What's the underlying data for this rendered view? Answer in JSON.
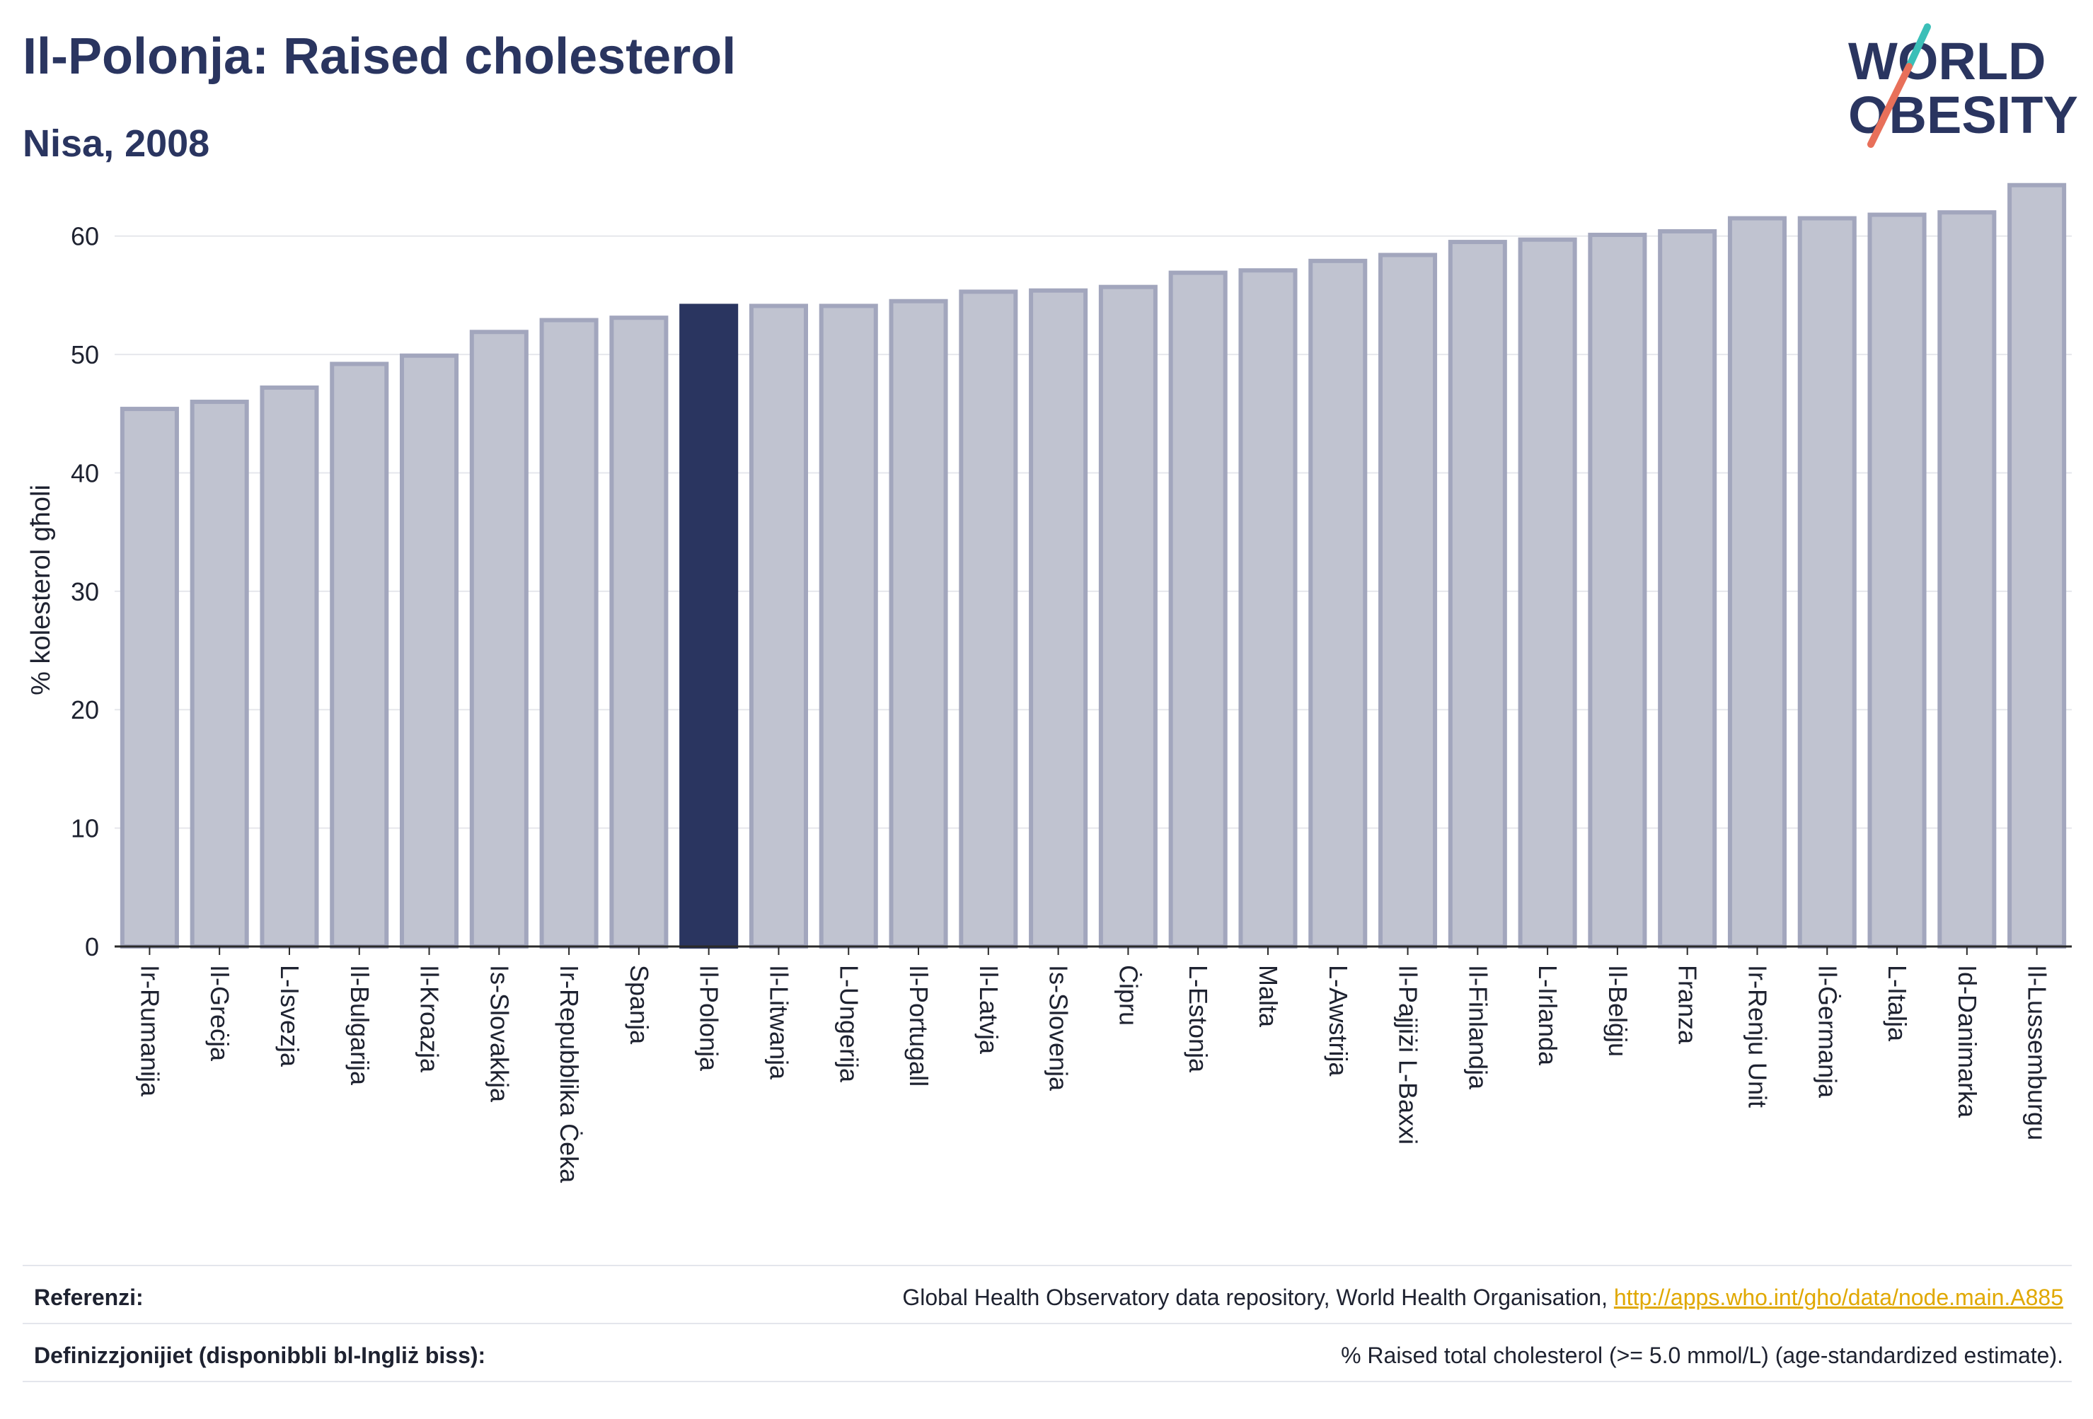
{
  "header": {
    "title": "Il-Polonja: Raised cholesterol",
    "subtitle": "Nisa, 2008"
  },
  "logo": {
    "line1": "WORLD",
    "line2": "OBESITY",
    "colors": {
      "text": "#2a3560",
      "slash_teal": "#3bbfb8",
      "slash_coral": "#e8705a"
    }
  },
  "chart_data": {
    "type": "bar",
    "title": "Il-Polonja: Raised cholesterol",
    "subtitle": "Nisa, 2008",
    "xlabel": "",
    "ylabel": "% kolesterol għoli",
    "ylim": [
      0,
      65
    ],
    "yticks": [
      0,
      10,
      20,
      30,
      40,
      50,
      60
    ],
    "grid": true,
    "highlight": "Il-Polonja",
    "colors": {
      "bar": "#c0c3d0",
      "bar_border": "#a2a6bd",
      "highlight": "#2a3560"
    },
    "categories": [
      "Ir-Rumanija",
      "Il-Greċja",
      "L-Isvezja",
      "Il-Bulgarija",
      "Il-Kroazja",
      "Is-Slovakkja",
      "Ir-Repubblika Ċeka",
      "Spanja",
      "Il-Polonja",
      "Il-Litwanja",
      "L-Ungerija",
      "Il-Portugall",
      "Il-Latvja",
      "Is-Slovenja",
      "Ċipru",
      "L-Estonja",
      "Malta",
      "L-Awstrija",
      "Il-Pajjiżi L-Baxxi",
      "Il-Finlandja",
      "L-Irlanda",
      "Il-Belġju",
      "Franza",
      "Ir-Renju Unit",
      "Il-Ġermanja",
      "L-Italja",
      "Id-Danimarka",
      "Il-Lussemburgu"
    ],
    "values": [
      45.4,
      46.0,
      47.2,
      49.2,
      49.9,
      51.9,
      52.9,
      53.1,
      54.1,
      54.1,
      54.1,
      54.5,
      55.3,
      55.4,
      55.7,
      56.9,
      57.1,
      57.9,
      58.4,
      59.5,
      59.7,
      60.1,
      60.4,
      61.5,
      61.5,
      61.8,
      62.0,
      64.3
    ]
  },
  "footer": {
    "references_label": "Referenzi:",
    "references_text": "Global Health Observatory data repository, World Health Organisation, ",
    "references_link": "http://apps.who.int/gho/data/node.main.A885",
    "definitions_label": "Definizzjonijiet (disponibbli bl-Ingliż biss):",
    "definitions_text": "% Raised total cholesterol (>= 5.0 mmol/L) (age-standardized estimate)."
  }
}
